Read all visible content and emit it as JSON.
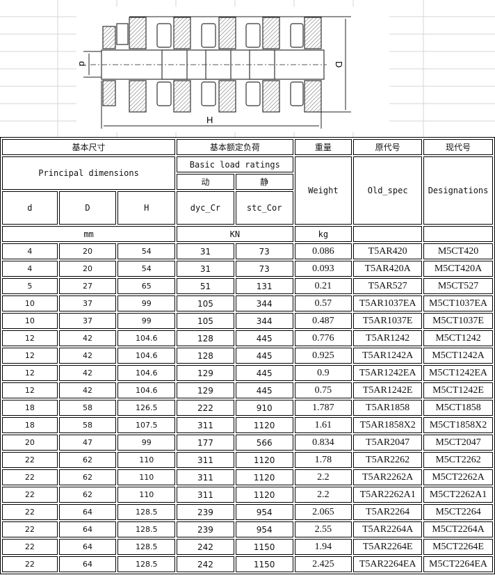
{
  "drawing": {
    "labels": {
      "d": "d",
      "D": "D",
      "H": "H"
    }
  },
  "header": {
    "group_dimensions_cn": "基本尺寸",
    "group_load_cn": "基本额定负荷",
    "weight_cn": "重量",
    "old_spec_cn": "原代号",
    "designation_cn": "现代号",
    "principal_dimensions": "Principal dimensions",
    "basic_load_ratings": "Basic load ratings",
    "dynamic_cn": "动",
    "static_cn": "静",
    "weight": "Weight",
    "old_spec": "Old_spec",
    "designations": "Designations",
    "d": "d",
    "D": "D",
    "H": "H",
    "dyc_cr": "dyc_Cr",
    "stc_cor": "stc_Cor",
    "unit_mm": "mm",
    "unit_kn": "KN",
    "unit_kg": "kg"
  },
  "rows": [
    [
      "4",
      "20",
      "54",
      "31",
      "73",
      "0.086",
      "T5AR420",
      "M5CT420"
    ],
    [
      "4",
      "20",
      "54",
      "31",
      "73",
      "0.093",
      "T5AR420A",
      "M5CT420A"
    ],
    [
      "5",
      "27",
      "65",
      "51",
      "131",
      "0.21",
      "T5AR527",
      "M5CT527"
    ],
    [
      "10",
      "37",
      "99",
      "105",
      "344",
      "0.57",
      "T5AR1037EA",
      "M5CT1037EA"
    ],
    [
      "10",
      "37",
      "99",
      "105",
      "344",
      "0.487",
      "T5AR1037E",
      "M5CT1037E"
    ],
    [
      "12",
      "42",
      "104.6",
      "128",
      "445",
      "0.776",
      "T5AR1242",
      "M5CT1242"
    ],
    [
      "12",
      "42",
      "104.6",
      "128",
      "445",
      "0.925",
      "T5AR1242A",
      "M5CT1242A"
    ],
    [
      "12",
      "42",
      "104.6",
      "129",
      "445",
      "0.9",
      "T5AR1242EA",
      "M5CT1242EA"
    ],
    [
      "12",
      "42",
      "104.6",
      "129",
      "445",
      "0.75",
      "T5AR1242E",
      "M5CT1242E"
    ],
    [
      "18",
      "58",
      "126.5",
      "222",
      "910",
      "1.787",
      "T5AR1858",
      "M5CT1858"
    ],
    [
      "18",
      "58",
      "107.5",
      "311",
      "1120",
      "1.61",
      "T5AR1858X2",
      "M5CT1858X2"
    ],
    [
      "20",
      "47",
      "99",
      "177",
      "566",
      "0.834",
      "T5AR2047",
      "M5CT2047"
    ],
    [
      "22",
      "62",
      "110",
      "311",
      "1120",
      "1.78",
      "T5AR2262",
      "M5CT2262"
    ],
    [
      "22",
      "62",
      "110",
      "311",
      "1120",
      "2.2",
      "T5AR2262A",
      "M5CT2262A"
    ],
    [
      "22",
      "62",
      "110",
      "311",
      "1120",
      "2.2",
      "T5AR2262A1",
      "M5CT2262A1"
    ],
    [
      "22",
      "64",
      "128.5",
      "239",
      "954",
      "2.065",
      "T5AR2264",
      "M5CT2264"
    ],
    [
      "22",
      "64",
      "128.5",
      "239",
      "954",
      "2.55",
      "T5AR2264A",
      "M5CT2264A"
    ],
    [
      "22",
      "64",
      "128.5",
      "242",
      "1150",
      "1.94",
      "T5AR2264E",
      "M5CT2264E"
    ],
    [
      "22",
      "64",
      "128.5",
      "242",
      "1150",
      "2.425",
      "T5AR2264EA",
      "M5CT2264EA"
    ]
  ]
}
